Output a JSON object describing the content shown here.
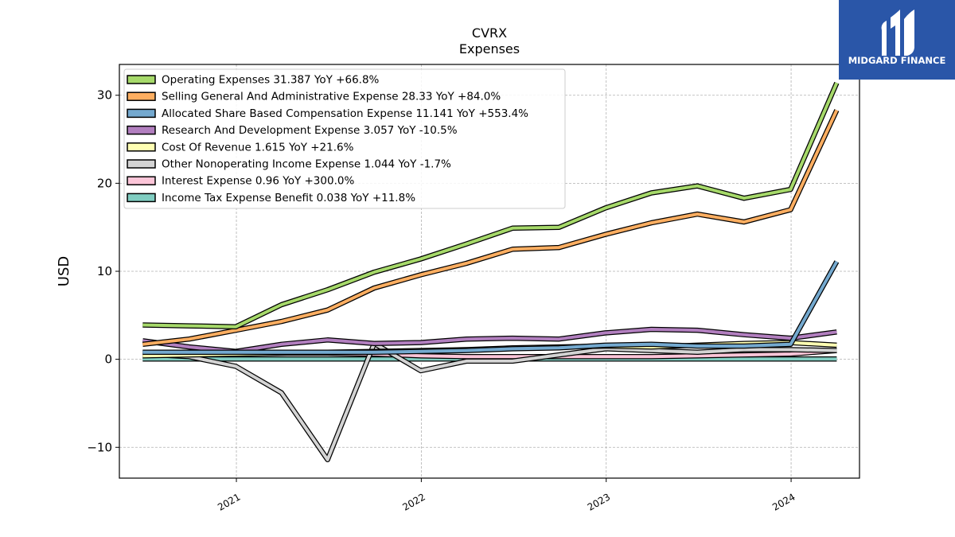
{
  "chart_data": {
    "type": "line",
    "title": "CVRX",
    "subtitle": "Expenses",
    "ylabel": "USD",
    "xlabel": "",
    "ylim": [
      -13.5,
      33.5
    ],
    "yticks": [
      -10,
      0,
      10,
      20,
      30
    ],
    "ytick_labels": [
      "−10",
      "0",
      "10",
      "20",
      "30"
    ],
    "xlim": [
      "2020-05-15",
      "2024-05-15"
    ],
    "xticks": [
      "2021-01-01",
      "2022-01-01",
      "2023-01-01",
      "2024-01-01"
    ],
    "xtick_labels": [
      "2021",
      "2022",
      "2023",
      "2024"
    ],
    "grid": true,
    "legend_position": "top-left",
    "x": [
      "2020-06-30",
      "2020-09-30",
      "2020-12-31",
      "2021-03-31",
      "2021-06-30",
      "2021-09-30",
      "2021-12-31",
      "2022-03-31",
      "2022-06-30",
      "2022-09-30",
      "2022-12-31",
      "2023-03-31",
      "2023-06-30",
      "2023-09-30",
      "2023-12-31",
      "2024-03-31"
    ],
    "series": [
      {
        "name": "Operating Expenses",
        "legend_label": "Operating Expenses  31.387 YoY +66.8%",
        "color": "#a6d96a",
        "values": [
          3.9,
          3.8,
          3.7,
          6.2,
          7.9,
          9.9,
          11.4,
          13.1,
          14.9,
          15.0,
          17.2,
          18.9,
          19.7,
          18.3,
          19.3,
          31.4
        ]
      },
      {
        "name": "Selling General And Administrative Expense",
        "legend_label": "Selling General And Administrative Expense  28.33 YoY +84.0%",
        "color": "#fdae61",
        "values": [
          1.7,
          2.3,
          3.3,
          4.3,
          5.6,
          8.1,
          9.6,
          10.9,
          12.5,
          12.7,
          14.2,
          15.5,
          16.5,
          15.6,
          17.0,
          28.3
        ]
      },
      {
        "name": "Allocated Share Based Compensation Expense",
        "legend_label": "Allocated Share Based Compensation Expense  11.141 YoY +553.4%",
        "color": "#74a9cf",
        "values": [
          0.8,
          0.8,
          0.8,
          0.8,
          0.8,
          0.8,
          0.9,
          1.0,
          1.2,
          1.3,
          1.6,
          1.7,
          1.5,
          1.5,
          1.7,
          11.1
        ]
      },
      {
        "name": "Research And Development Expense",
        "legend_label": "Research And Development Expense  3.057 YoY -10.5%",
        "color": "#b27fbf",
        "values": [
          2.1,
          1.4,
          0.9,
          1.7,
          2.2,
          1.8,
          1.9,
          2.3,
          2.4,
          2.3,
          3.0,
          3.4,
          3.3,
          2.8,
          2.4,
          3.1
        ]
      },
      {
        "name": "Cost Of Revenue",
        "legend_label": "Cost Of Revenue  1.615 YoY +21.6%",
        "color": "#ffffb3",
        "values": [
          0.4,
          0.5,
          0.6,
          0.7,
          0.8,
          0.9,
          1.0,
          1.1,
          1.3,
          1.4,
          1.5,
          1.4,
          1.6,
          1.8,
          1.9,
          1.6
        ]
      },
      {
        "name": "Other Nonoperating Income Expense",
        "legend_label": "Other Nonoperating Income Expense  1.044 YoY -1.7%",
        "color": "#d3d3d3",
        "values": [
          0.6,
          0.3,
          -0.8,
          -3.8,
          -11.4,
          1.8,
          -1.3,
          -0.2,
          -0.2,
          0.5,
          1.2,
          1.0,
          0.8,
          1.1,
          1.1,
          1.0
        ]
      },
      {
        "name": "Interest Expense",
        "legend_label": "Interest Expense  0.96 YoY +300.0%",
        "color": "#fcc5d8",
        "values": [
          0.7,
          0.7,
          0.7,
          0.7,
          0.7,
          0.6,
          0.4,
          0.3,
          0.3,
          0.3,
          0.3,
          0.3,
          0.4,
          0.5,
          0.6,
          1.0
        ]
      },
      {
        "name": "Income Tax Expense Benefit",
        "legend_label": "Income Tax Expense Benefit  0.038 YoY +11.8%",
        "color": "#80cdc1",
        "values": [
          0.04,
          0.04,
          0.04,
          0.04,
          0.04,
          0.04,
          0.04,
          0.04,
          0.04,
          0.04,
          0.04,
          0.04,
          0.04,
          0.04,
          0.04,
          0.04
        ]
      }
    ]
  },
  "branding": {
    "name": "MIDGARD FINANCE",
    "background_color": "#2a56a8",
    "logo_icon": "midgard-logo-icon"
  }
}
